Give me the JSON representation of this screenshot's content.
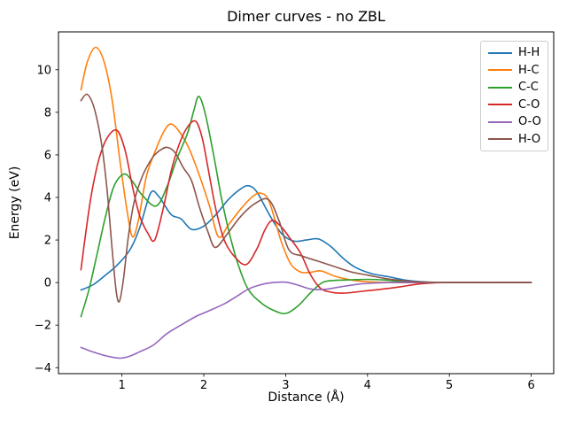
{
  "figure": {
    "title": "Dimer curves - no ZBL",
    "xlabel": "Distance (Å)",
    "ylabel": "Energy (eV)"
  },
  "chart_data": {
    "type": "line",
    "title": "Dimer curves - no ZBL",
    "xlabel": "Distance (Å)",
    "ylabel": "Energy (eV)",
    "xlim": [
      0.225,
      6.275
    ],
    "ylim": [
      -4.28,
      11.78
    ],
    "x_ticks": [
      1,
      2,
      3,
      4,
      5,
      6
    ],
    "y_ticks": [
      -4,
      -2,
      0,
      2,
      4,
      6,
      8,
      10
    ],
    "grid": false,
    "legend_position": "upper right",
    "line_width": 1.6,
    "series": [
      {
        "name": "H-H",
        "color": "#1f77b4",
        "points": [
          [
            0.5,
            -0.35
          ],
          [
            0.65,
            -0.1
          ],
          [
            0.8,
            0.35
          ],
          [
            0.95,
            0.85
          ],
          [
            1.1,
            1.55
          ],
          [
            1.22,
            2.6
          ],
          [
            1.35,
            4.2
          ],
          [
            1.45,
            4.05
          ],
          [
            1.6,
            3.2
          ],
          [
            1.72,
            3.0
          ],
          [
            1.85,
            2.5
          ],
          [
            2.0,
            2.65
          ],
          [
            2.15,
            3.2
          ],
          [
            2.3,
            3.9
          ],
          [
            2.45,
            4.4
          ],
          [
            2.55,
            4.55
          ],
          [
            2.65,
            4.25
          ],
          [
            2.8,
            3.2
          ],
          [
            2.95,
            2.3
          ],
          [
            3.1,
            1.95
          ],
          [
            3.25,
            2.0
          ],
          [
            3.4,
            2.05
          ],
          [
            3.55,
            1.7
          ],
          [
            3.7,
            1.15
          ],
          [
            3.85,
            0.72
          ],
          [
            4.05,
            0.42
          ],
          [
            4.25,
            0.28
          ],
          [
            4.45,
            0.12
          ],
          [
            4.65,
            0.04
          ],
          [
            4.85,
            0.01
          ],
          [
            5.1,
            0
          ],
          [
            5.5,
            0
          ],
          [
            6.0,
            0
          ]
        ]
      },
      {
        "name": "H-C",
        "color": "#ff7f0e",
        "points": [
          [
            0.5,
            9.05
          ],
          [
            0.58,
            10.4
          ],
          [
            0.68,
            11.05
          ],
          [
            0.78,
            10.4
          ],
          [
            0.88,
            8.6
          ],
          [
            0.98,
            5.6
          ],
          [
            1.07,
            3.2
          ],
          [
            1.13,
            2.15
          ],
          [
            1.2,
            2.9
          ],
          [
            1.3,
            5.0
          ],
          [
            1.42,
            6.3
          ],
          [
            1.52,
            7.15
          ],
          [
            1.6,
            7.45
          ],
          [
            1.7,
            7.1
          ],
          [
            1.82,
            6.3
          ],
          [
            1.95,
            5.0
          ],
          [
            2.07,
            3.6
          ],
          [
            2.18,
            2.15
          ],
          [
            2.3,
            2.7
          ],
          [
            2.45,
            3.45
          ],
          [
            2.6,
            4.05
          ],
          [
            2.7,
            4.2
          ],
          [
            2.8,
            3.8
          ],
          [
            2.94,
            2.0
          ],
          [
            3.06,
            0.9
          ],
          [
            3.18,
            0.5
          ],
          [
            3.3,
            0.48
          ],
          [
            3.43,
            0.55
          ],
          [
            3.6,
            0.3
          ],
          [
            3.8,
            0.12
          ],
          [
            4.0,
            0.04
          ],
          [
            4.3,
            0
          ],
          [
            4.7,
            0
          ],
          [
            5.2,
            0
          ],
          [
            6.0,
            0
          ]
        ]
      },
      {
        "name": "C-C",
        "color": "#2ca02c",
        "points": [
          [
            0.5,
            -1.6
          ],
          [
            0.6,
            -0.3
          ],
          [
            0.7,
            1.4
          ],
          [
            0.8,
            3.1
          ],
          [
            0.9,
            4.5
          ],
          [
            1.02,
            5.1
          ],
          [
            1.12,
            4.8
          ],
          [
            1.25,
            4.1
          ],
          [
            1.42,
            3.6
          ],
          [
            1.55,
            4.5
          ],
          [
            1.67,
            5.8
          ],
          [
            1.8,
            7.0
          ],
          [
            1.88,
            8.1
          ],
          [
            1.94,
            8.75
          ],
          [
            2.02,
            7.9
          ],
          [
            2.12,
            6.0
          ],
          [
            2.22,
            3.9
          ],
          [
            2.32,
            2.2
          ],
          [
            2.42,
            0.85
          ],
          [
            2.54,
            -0.3
          ],
          [
            2.7,
            -0.95
          ],
          [
            2.85,
            -1.3
          ],
          [
            3.0,
            -1.45
          ],
          [
            3.15,
            -1.1
          ],
          [
            3.3,
            -0.5
          ],
          [
            3.45,
            0
          ],
          [
            3.6,
            0.1
          ],
          [
            3.8,
            0.13
          ],
          [
            4.0,
            0.15
          ],
          [
            4.2,
            0.12
          ],
          [
            4.4,
            0.05
          ],
          [
            4.6,
            0.02
          ],
          [
            4.8,
            0
          ],
          [
            5.0,
            0
          ],
          [
            6.0,
            0
          ]
        ]
      },
      {
        "name": "C-O",
        "color": "#d62728",
        "points": [
          [
            0.5,
            0.6
          ],
          [
            0.56,
            2.4
          ],
          [
            0.63,
            4.2
          ],
          [
            0.72,
            5.8
          ],
          [
            0.82,
            6.8
          ],
          [
            0.94,
            7.15
          ],
          [
            1.04,
            6.2
          ],
          [
            1.13,
            4.5
          ],
          [
            1.22,
            3.1
          ],
          [
            1.32,
            2.3
          ],
          [
            1.4,
            2.0
          ],
          [
            1.5,
            3.4
          ],
          [
            1.6,
            5.2
          ],
          [
            1.7,
            6.5
          ],
          [
            1.8,
            7.3
          ],
          [
            1.9,
            7.58
          ],
          [
            1.98,
            6.8
          ],
          [
            2.07,
            5.0
          ],
          [
            2.15,
            3.4
          ],
          [
            2.25,
            2.0
          ],
          [
            2.38,
            1.2
          ],
          [
            2.52,
            0.85
          ],
          [
            2.65,
            1.6
          ],
          [
            2.75,
            2.5
          ],
          [
            2.84,
            2.92
          ],
          [
            2.95,
            2.6
          ],
          [
            3.05,
            2.1
          ],
          [
            3.18,
            1.4
          ],
          [
            3.3,
            0.4
          ],
          [
            3.42,
            -0.25
          ],
          [
            3.55,
            -0.45
          ],
          [
            3.7,
            -0.5
          ],
          [
            3.85,
            -0.45
          ],
          [
            4.0,
            -0.38
          ],
          [
            4.2,
            -0.3
          ],
          [
            4.4,
            -0.2
          ],
          [
            4.6,
            -0.08
          ],
          [
            4.8,
            -0.02
          ],
          [
            5.0,
            0
          ],
          [
            6.0,
            0
          ]
        ]
      },
      {
        "name": "O-O",
        "color": "#9467bd",
        "points": [
          [
            0.5,
            -3.05
          ],
          [
            0.6,
            -3.2
          ],
          [
            0.72,
            -3.35
          ],
          [
            0.85,
            -3.48
          ],
          [
            0.98,
            -3.55
          ],
          [
            1.1,
            -3.45
          ],
          [
            1.22,
            -3.25
          ],
          [
            1.38,
            -2.95
          ],
          [
            1.55,
            -2.4
          ],
          [
            1.72,
            -2.0
          ],
          [
            1.9,
            -1.6
          ],
          [
            2.05,
            -1.35
          ],
          [
            2.25,
            -1.0
          ],
          [
            2.4,
            -0.65
          ],
          [
            2.55,
            -0.3
          ],
          [
            2.7,
            -0.1
          ],
          [
            2.85,
            0
          ],
          [
            3.0,
            0.02
          ],
          [
            3.15,
            -0.12
          ],
          [
            3.3,
            -0.3
          ],
          [
            3.4,
            -0.33
          ],
          [
            3.55,
            -0.28
          ],
          [
            3.7,
            -0.18
          ],
          [
            3.9,
            -0.07
          ],
          [
            4.1,
            -0.02
          ],
          [
            4.3,
            0
          ],
          [
            4.6,
            0
          ],
          [
            5.0,
            0
          ],
          [
            6.0,
            0
          ]
        ]
      },
      {
        "name": "H-O",
        "color": "#8c564b",
        "points": [
          [
            0.5,
            8.55
          ],
          [
            0.57,
            8.85
          ],
          [
            0.64,
            8.45
          ],
          [
            0.7,
            7.6
          ],
          [
            0.76,
            6.3
          ],
          [
            0.82,
            4.3
          ],
          [
            0.88,
            1.6
          ],
          [
            0.93,
            -0.4
          ],
          [
            0.97,
            -0.88
          ],
          [
            1.02,
            0.2
          ],
          [
            1.08,
            2.2
          ],
          [
            1.15,
            3.8
          ],
          [
            1.25,
            5.0
          ],
          [
            1.38,
            5.9
          ],
          [
            1.48,
            6.25
          ],
          [
            1.56,
            6.35
          ],
          [
            1.65,
            6.1
          ],
          [
            1.75,
            5.4
          ],
          [
            1.85,
            4.8
          ],
          [
            1.95,
            3.5
          ],
          [
            2.05,
            2.4
          ],
          [
            2.14,
            1.65
          ],
          [
            2.28,
            2.25
          ],
          [
            2.45,
            3.1
          ],
          [
            2.62,
            3.7
          ],
          [
            2.79,
            3.9
          ],
          [
            2.92,
            2.9
          ],
          [
            3.04,
            1.54
          ],
          [
            3.2,
            1.25
          ],
          [
            3.4,
            1.0
          ],
          [
            3.6,
            0.75
          ],
          [
            3.8,
            0.5
          ],
          [
            4.0,
            0.35
          ],
          [
            4.2,
            0.2
          ],
          [
            4.4,
            0.1
          ],
          [
            4.6,
            0.04
          ],
          [
            4.8,
            0.01
          ],
          [
            5.0,
            0
          ],
          [
            6.0,
            0
          ]
        ]
      }
    ]
  }
}
